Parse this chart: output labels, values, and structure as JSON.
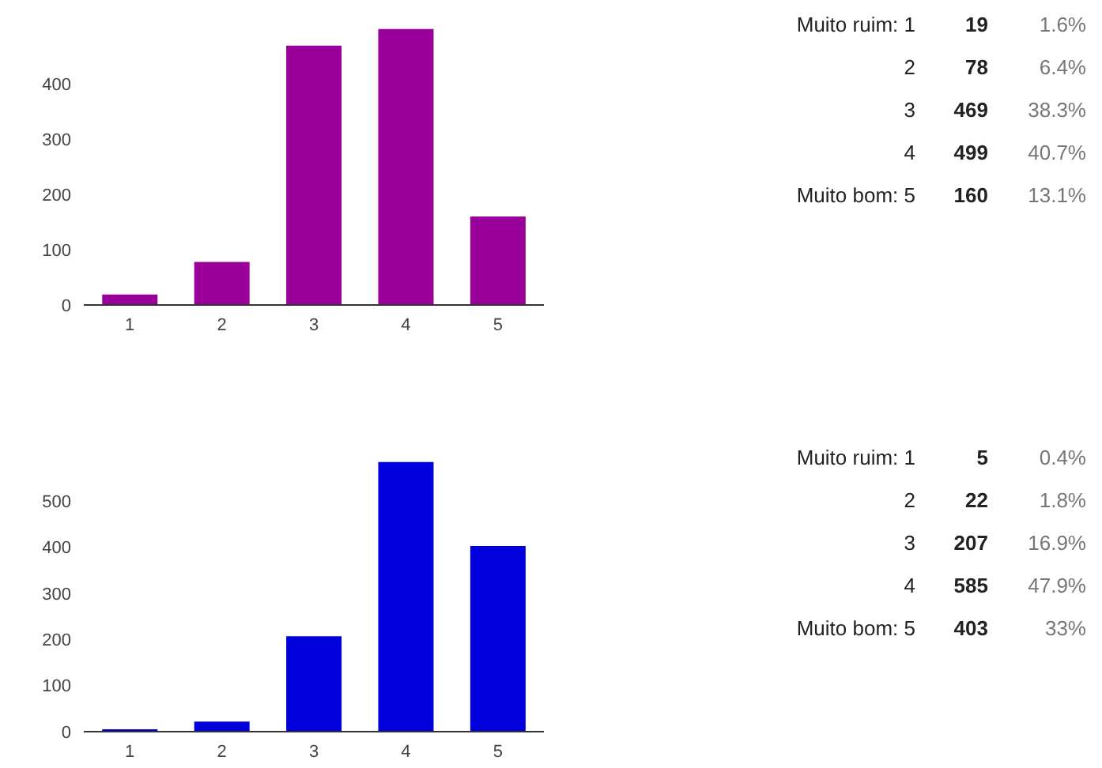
{
  "chart_data": [
    {
      "type": "bar",
      "categories": [
        "1",
        "2",
        "3",
        "4",
        "5"
      ],
      "values": [
        19,
        78,
        469,
        499,
        160
      ],
      "color": "#990099",
      "ylim": [
        0,
        500
      ],
      "yticks": [
        0,
        100,
        200,
        300,
        400
      ],
      "grid": false,
      "legend": false
    },
    {
      "type": "other",
      "annotations": [
        "Muito ruim: 1",
        "19",
        "1.6%",
        "2",
        "78",
        "6.4%",
        "3",
        "469",
        "38.3%",
        "4",
        "499",
        "40.7%",
        "Muito bom: 5",
        "160",
        "13.1%"
      ]
    },
    {
      "type": "bar",
      "categories": [
        "1",
        "2",
        "3",
        "4",
        "5"
      ],
      "values": [
        5,
        22,
        207,
        585,
        403
      ],
      "color": "#0000dd",
      "ylim": [
        0,
        600
      ],
      "yticks": [
        0,
        100,
        200,
        300,
        400,
        500
      ],
      "grid": false,
      "legend": false
    },
    {
      "type": "other",
      "annotations": [
        "Muito ruim: 1",
        "5",
        "0.4%",
        "2",
        "22",
        "1.8%",
        "3",
        "207",
        "16.9%",
        "4",
        "585",
        "47.9%",
        "Muito bom: 5",
        "403",
        "33%"
      ]
    }
  ]
}
